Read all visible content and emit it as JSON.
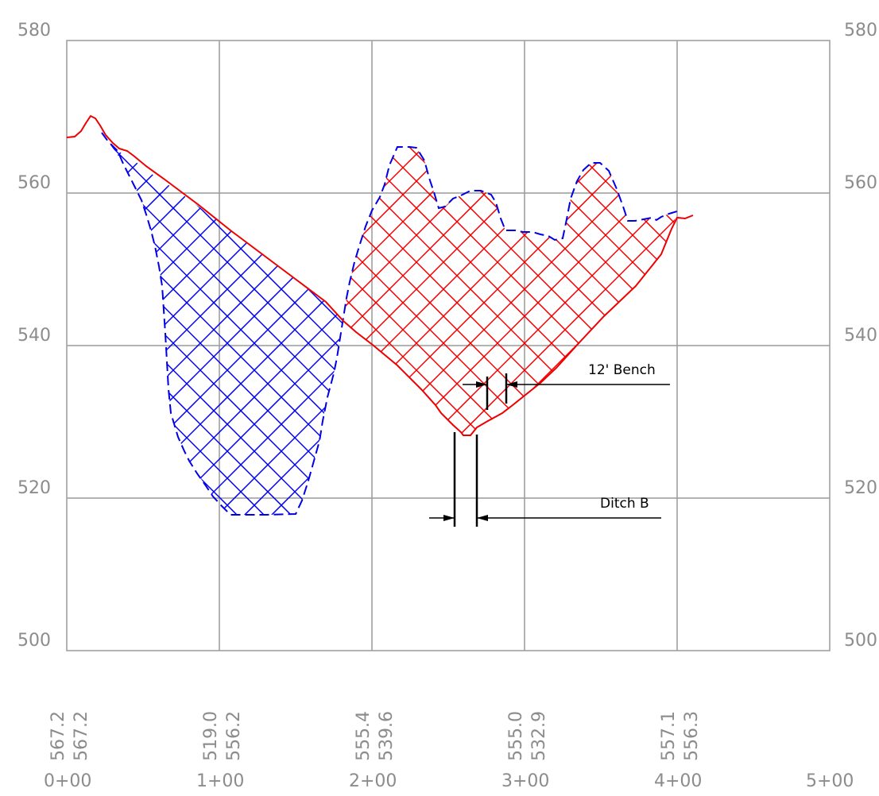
{
  "colors": {
    "grid": "#9a9a9a",
    "labels": "#8c8c8c",
    "existing_ground": "#0000e6",
    "proposed_grade": "#ee0000",
    "callout": "#000000"
  },
  "elevation_labels": [
    "580",
    "560",
    "540",
    "520",
    "500"
  ],
  "station_labels": [
    "0+00",
    "1+00",
    "2+00",
    "3+00",
    "4+00",
    "5+00"
  ],
  "existing_elevations": [
    "567.2",
    "519.0",
    "555.4",
    "555.0",
    "557.1"
  ],
  "proposed_elevations": [
    "567.2",
    "556.2",
    "539.6",
    "532.9",
    "556.3"
  ],
  "callouts": {
    "bench": "12' Bench",
    "ditch": "Ditch B"
  }
}
